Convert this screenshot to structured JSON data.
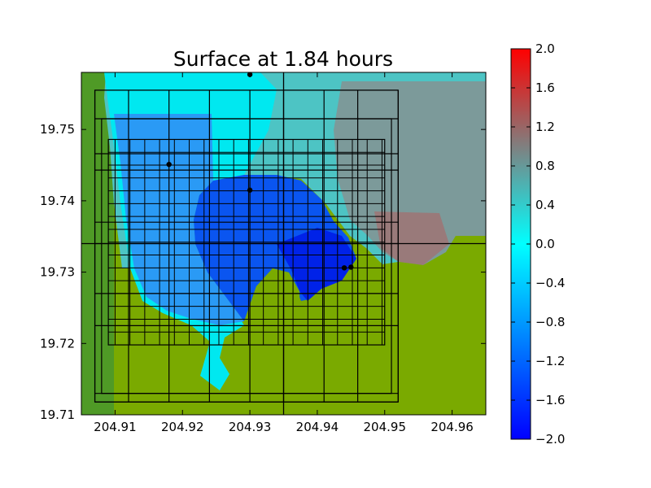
{
  "chart_data": {
    "type": "heatmap",
    "title": "Surface at 1.84 hours",
    "xlabel": "",
    "ylabel": "",
    "xlim": [
      204.905,
      204.965
    ],
    "ylim": [
      19.71,
      19.758
    ],
    "x_ticks": [
      204.91,
      204.92,
      204.93,
      204.94,
      204.95,
      204.96
    ],
    "y_ticks": [
      19.71,
      19.72,
      19.73,
      19.74,
      19.75
    ],
    "x_tick_labels": [
      "204.91",
      "204.92",
      "204.93",
      "204.94",
      "204.95",
      "204.96"
    ],
    "y_tick_labels": [
      "19.71",
      "19.72",
      "19.73",
      "19.74",
      "19.75"
    ],
    "grid": false,
    "colorbar": {
      "vmin": -2.0,
      "vmax": 2.0,
      "ticks": [
        2.0,
        1.6,
        1.2,
        0.8,
        0.4,
        0.0,
        -0.4,
        -0.8,
        -1.2,
        -1.6,
        -2.0
      ],
      "tick_labels": [
        "2.0",
        "1.6",
        "1.2",
        "0.8",
        "0.4",
        "0.0",
        "−0.4",
        "−0.8",
        "−1.2",
        "−1.6",
        "−2.0"
      ],
      "colors": [
        "#0000ff",
        "#00ffff",
        "#ff0000"
      ]
    },
    "land_colors": [
      "#4a9a2c",
      "#7aaa00"
    ],
    "gauges": [
      {
        "x": 204.93,
        "y": 19.7577
      },
      {
        "x": 204.918,
        "y": 19.7451
      },
      {
        "x": 204.93,
        "y": 19.7415
      },
      {
        "x": 204.944,
        "y": 19.7306
      },
      {
        "x": 204.945,
        "y": 19.7307
      }
    ],
    "crosshair": {
      "x": 204.935,
      "y": 19.734
    },
    "grid_patch_boxes": [
      [
        204.907,
        204.952,
        19.7118,
        19.7555
      ],
      [
        204.908,
        204.951,
        19.713,
        19.7515
      ],
      [
        204.909,
        204.95,
        19.7198,
        19.7486
      ]
    ]
  }
}
